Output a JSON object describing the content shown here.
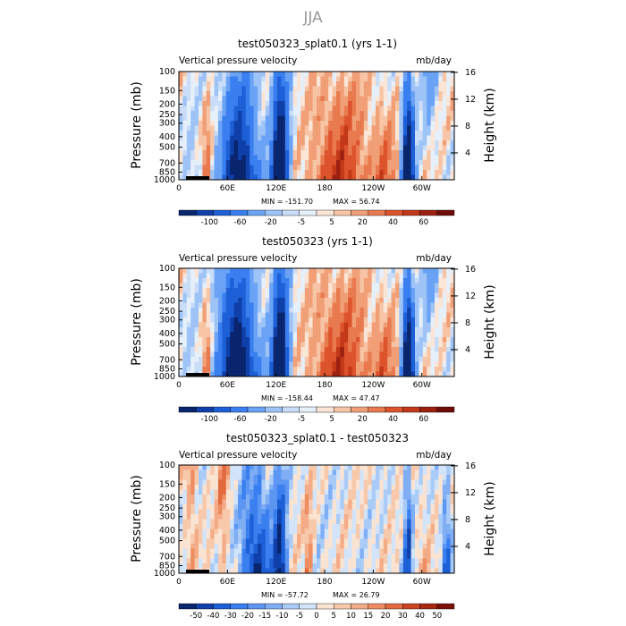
{
  "title": "JJA",
  "chart_data": [
    {
      "type": "heatmap",
      "title": "test050323_splat0.1 (yrs 1-1)",
      "left_subtitle": "Vertical pressure velocity",
      "right_subtitle": "mb/day",
      "ylabel": "Pressure (mb)",
      "y2label": "Height (km)",
      "yticks": [
        "100",
        "150",
        "200",
        "250",
        "300",
        "400",
        "500",
        "700",
        "850",
        "1000"
      ],
      "y2ticks": [
        "16",
        "12",
        "8",
        "4"
      ],
      "xticks": [
        "0",
        "60E",
        "120E",
        "180",
        "120W",
        "60W"
      ],
      "xlim": [
        0,
        340
      ],
      "ylim": [
        1000,
        100
      ],
      "min_label": "MIN = -151.70",
      "max_label": "MAX = 56.74",
      "colorbar_labels": [
        "-100",
        "-60",
        "-20",
        "-5",
        "5",
        "20",
        "40",
        "60"
      ],
      "colorbar_colors": [
        "#08256e",
        "#0f3fa8",
        "#1d5fd6",
        "#3a7ff0",
        "#6aa3f5",
        "#9dc3f7",
        "#c9ddf8",
        "#e6f0fa",
        "#fbe5d6",
        "#f7c5a6",
        "#f19f77",
        "#e97a4f",
        "#dd532c",
        "#c23818",
        "#9c2010",
        "#6e0d08"
      ]
    },
    {
      "type": "heatmap",
      "title": "test050323 (yrs 1-1)",
      "left_subtitle": "Vertical pressure velocity",
      "right_subtitle": "mb/day",
      "ylabel": "Pressure (mb)",
      "y2label": "Height (km)",
      "yticks": [
        "100",
        "150",
        "200",
        "250",
        "300",
        "400",
        "500",
        "700",
        "850",
        "1000"
      ],
      "y2ticks": [
        "16",
        "12",
        "8",
        "4"
      ],
      "xticks": [
        "0",
        "60E",
        "120E",
        "180",
        "120W",
        "60W"
      ],
      "xlim": [
        0,
        340
      ],
      "ylim": [
        1000,
        100
      ],
      "min_label": "MIN = -158.44",
      "max_label": "MAX = 47.47",
      "colorbar_labels": [
        "-100",
        "-60",
        "-20",
        "-5",
        "5",
        "20",
        "40",
        "60"
      ],
      "colorbar_colors": [
        "#08256e",
        "#0f3fa8",
        "#1d5fd6",
        "#3a7ff0",
        "#6aa3f5",
        "#9dc3f7",
        "#c9ddf8",
        "#e6f0fa",
        "#fbe5d6",
        "#f7c5a6",
        "#f19f77",
        "#e97a4f",
        "#dd532c",
        "#c23818",
        "#9c2010",
        "#6e0d08"
      ]
    },
    {
      "type": "heatmap",
      "title": "test050323_splat0.1 - test050323",
      "left_subtitle": "Vertical pressure velocity",
      "right_subtitle": "mb/day",
      "ylabel": "Pressure (mb)",
      "y2label": "Height (km)",
      "yticks": [
        "100",
        "150",
        "200",
        "250",
        "300",
        "400",
        "500",
        "700",
        "850",
        "1000"
      ],
      "y2ticks": [
        "16",
        "12",
        "8",
        "4"
      ],
      "xticks": [
        "0",
        "60E",
        "120E",
        "180",
        "120W",
        "60W"
      ],
      "xlim": [
        0,
        340
      ],
      "ylim": [
        1000,
        100
      ],
      "min_label": "MIN = -57.72",
      "max_label": "MAX = 26.79",
      "colorbar_labels": [
        "-50",
        "-40",
        "-30",
        "-20",
        "-15",
        "-10",
        "-5",
        "0",
        "5",
        "10",
        "15",
        "20",
        "30",
        "40",
        "50"
      ],
      "colorbar_colors": [
        "#08256e",
        "#0f3fa8",
        "#1d5fd6",
        "#3a7ff0",
        "#5d96f2",
        "#80aef5",
        "#a9cbf7",
        "#d2e4f9",
        "#fbe3d2",
        "#f7c8aa",
        "#f4ac88",
        "#ee8d62",
        "#e26a3e",
        "#cc4522",
        "#a82812",
        "#7a1008"
      ]
    }
  ]
}
